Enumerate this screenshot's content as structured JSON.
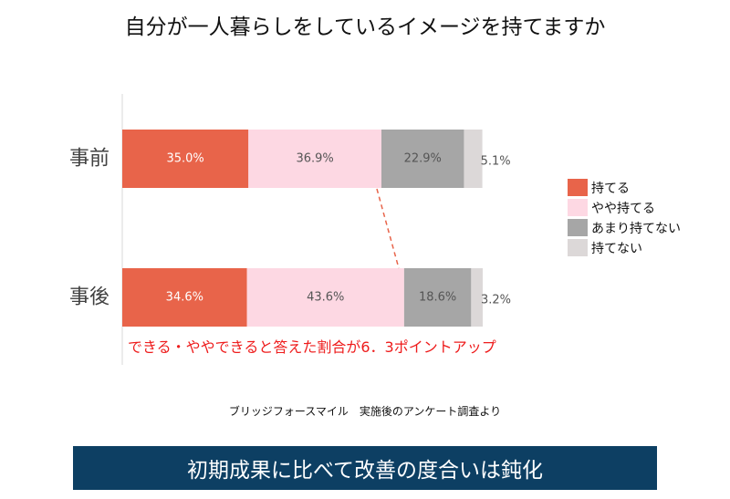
{
  "title": "自分が一人暮らしをしているイメージを持てますか",
  "chart_data": {
    "type": "bar",
    "orientation": "horizontal",
    "stacked": true,
    "categories": [
      "事前",
      "事後"
    ],
    "series": [
      {
        "name": "持てる",
        "values": [
          35.0,
          34.6
        ],
        "color": "#e8644a",
        "label_color": "#ffffff"
      },
      {
        "name": "やや持てる",
        "values": [
          36.9,
          43.6
        ],
        "color": "#fdd8e3",
        "label_color": "#555555"
      },
      {
        "name": "あまり持てない",
        "values": [
          22.9,
          18.6
        ],
        "color": "#a6a6a6",
        "label_color": "#555555"
      },
      {
        "name": "持てない",
        "values": [
          5.1,
          3.2
        ],
        "color": "#dcd8d8",
        "label_color": "#555555"
      }
    ],
    "value_labels": [
      [
        "35.0%",
        "36.9%",
        "22.9%",
        "5.1%"
      ],
      [
        "34.6%",
        "43.6%",
        "18.6%",
        "3.2%"
      ]
    ],
    "xlim": [
      0,
      100
    ],
    "legend_position": "right",
    "grid": false
  },
  "annotation": "できる・ややできると答えた割合が6．3ポイントアップ",
  "source": "ブリッジフォースマイル　実施後のアンケート調査より",
  "banner": "初期成果に比べて改善の度合いは鈍化"
}
